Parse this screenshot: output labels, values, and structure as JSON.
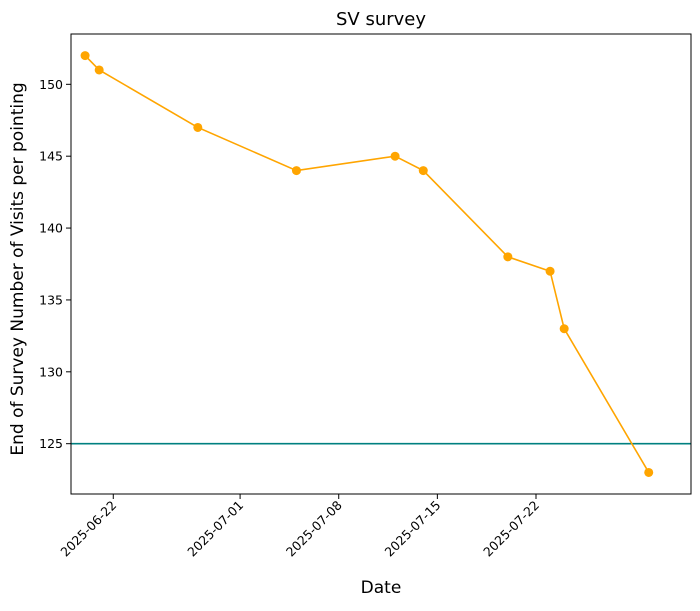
{
  "chart_data": {
    "type": "line",
    "title": "SV survey",
    "xlabel": "Date",
    "ylabel": "End of Survey Number of Visits per pointing",
    "x_ticks": [
      "2025-06-22",
      "2025-07-01",
      "2025-07-08",
      "2025-07-15",
      "2025-07-22"
    ],
    "y_ticks": [
      125,
      130,
      135,
      140,
      145,
      150
    ],
    "xlim": [
      "2025-06-19",
      "2025-08-02"
    ],
    "ylim": [
      121.5,
      153.5
    ],
    "grid": false,
    "series": [
      {
        "color": "#ffa500",
        "marker": "circle",
        "x": [
          "2025-06-20",
          "2025-06-21",
          "2025-06-28",
          "2025-07-05",
          "2025-07-12",
          "2025-07-14",
          "2025-07-20",
          "2025-07-23",
          "2025-07-24",
          "2025-07-30"
        ],
        "y": [
          152,
          151,
          147,
          144,
          145,
          144,
          138,
          137,
          133,
          123
        ]
      }
    ],
    "reference_lines": [
      {
        "orientation": "horizontal",
        "y": 125,
        "color": "#008080"
      }
    ]
  }
}
